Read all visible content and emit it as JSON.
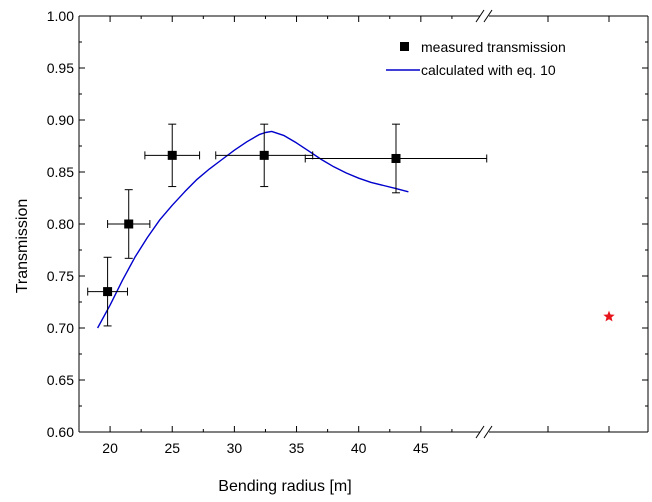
{
  "chart_data": {
    "type": "scatter",
    "xlabel": "Bending radius [m]",
    "ylabel": "Transmission",
    "xlim": [
      17.5,
      50
    ],
    "ylim": [
      0.6,
      1.0
    ],
    "x_ticks": [
      20,
      25,
      30,
      35,
      40,
      45
    ],
    "x_tick_labels": [
      "20",
      "25",
      "30",
      "35",
      "40",
      "45"
    ],
    "y_ticks": [
      0.6,
      0.65,
      0.7,
      0.75,
      0.8,
      0.85,
      0.9,
      0.95,
      1.0
    ],
    "y_tick_labels": [
      "0.60",
      "0.65",
      "0.70",
      "0.75",
      "0.80",
      "0.85",
      "0.90",
      "0.95",
      "1.00"
    ],
    "axis_break": "x-axis break after 50, extra point plotted to the right of the break",
    "grid": false,
    "legend": {
      "placement": "top-right",
      "entries": [
        "measured transmission",
        "calculated with eq. 10"
      ]
    },
    "series": [
      {
        "name": "measured transmission",
        "kind": "points-with-error-bars",
        "marker": "filled-square",
        "color": "#000000",
        "points": [
          {
            "x": 19.8,
            "y": 0.735,
            "xerr": 1.6,
            "yerr": 0.033
          },
          {
            "x": 21.5,
            "y": 0.8,
            "xerr": 1.7,
            "yerr": 0.033
          },
          {
            "x": 25.0,
            "y": 0.866,
            "xerr": 2.2,
            "yerr": 0.03
          },
          {
            "x": 32.4,
            "y": 0.866,
            "xerr": 3.9,
            "yerr": 0.03
          },
          {
            "x": 43.0,
            "y": 0.863,
            "xerr": 7.3,
            "yerr": 0.033
          }
        ]
      },
      {
        "name": "calculated with eq. 10",
        "kind": "line",
        "color": "#0000cc",
        "x": [
          19.0,
          20.0,
          21.0,
          22.0,
          23.0,
          24.0,
          25.0,
          26.0,
          27.0,
          28.0,
          29.0,
          30.0,
          31.0,
          32.0,
          32.5,
          33.0,
          34.0,
          35.0,
          36.0,
          37.0,
          38.0,
          39.0,
          40.0,
          41.0,
          42.0,
          43.0,
          44.0
        ],
        "y": [
          0.7,
          0.722,
          0.746,
          0.768,
          0.787,
          0.804,
          0.818,
          0.831,
          0.843,
          0.853,
          0.862,
          0.871,
          0.879,
          0.886,
          0.888,
          0.889,
          0.885,
          0.878,
          0.87,
          0.862,
          0.855,
          0.849,
          0.844,
          0.84,
          0.837,
          0.834,
          0.831
        ]
      },
      {
        "name": "",
        "kind": "marker-after-break",
        "marker": "star",
        "color": "#e8141b",
        "y": 0.711
      }
    ]
  }
}
